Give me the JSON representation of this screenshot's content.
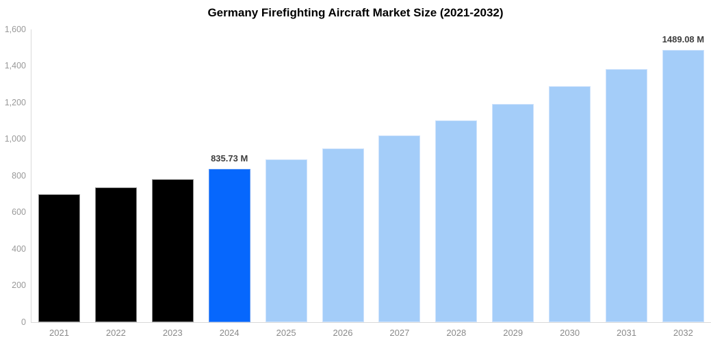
{
  "chart_data": {
    "type": "bar",
    "title": "Germany Firefighting Aircraft Market Size (2021-2032)",
    "unit_suffix": "M",
    "categories": [
      "2021",
      "2022",
      "2023",
      "2024",
      "2025",
      "2026",
      "2027",
      "2028",
      "2029",
      "2030",
      "2031",
      "2032"
    ],
    "values": [
      700,
      738,
      783,
      835.73,
      890,
      950,
      1022,
      1104,
      1192,
      1288,
      1385,
      1489.08
    ],
    "data_labels": [
      "",
      "",
      "",
      "835.73 M",
      "",
      "",
      "",
      "",
      "",
      "",
      "",
      "1489.08 M"
    ],
    "bar_roles": [
      "historical",
      "historical",
      "historical",
      "highlight",
      "forecast",
      "forecast",
      "forecast",
      "forecast",
      "forecast",
      "forecast",
      "forecast",
      "forecast"
    ],
    "ylim": [
      0,
      1600
    ],
    "ytick_values": [
      0,
      200,
      400,
      600,
      800,
      1000,
      1200,
      1400,
      1600
    ],
    "ytick_labels": [
      "0",
      "200",
      "400",
      "600",
      "800",
      "1,000",
      "1,200",
      "1,400",
      "1,600"
    ],
    "grid": false,
    "legend_position": "none",
    "colors": {
      "historical": "#000000",
      "highlight": "#0667FD",
      "forecast": "#A4CDF9"
    },
    "border_colors": {
      "historical": "#8f8f8f",
      "highlight": "#5d97f2",
      "forecast": "#cfe3fc"
    },
    "axis_line_color": "#d9d9d9",
    "ytick_text_color": "#999999",
    "xtick_text_color": "#8a8a8a",
    "data_label_color": "#3d3d3d"
  }
}
